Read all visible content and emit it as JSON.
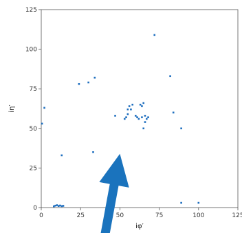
{
  "chart_data": {
    "type": "scatter",
    "xlabel": "iφ′",
    "ylabel": "iη′",
    "xlim": [
      0,
      125
    ],
    "ylim": [
      0,
      125
    ],
    "xticks": [
      "0",
      "25",
      "50",
      "75",
      "100",
      "125"
    ],
    "yticks": [
      "0",
      "25",
      "50",
      "75",
      "100",
      "125"
    ],
    "grid": false,
    "point_color": "#1f6fbf",
    "arrow_color": "#1a73bd",
    "arrow": {
      "from": [
        40,
        -20
      ],
      "to": [
        50,
        34
      ]
    },
    "points": [
      [
        0.5,
        53
      ],
      [
        2,
        63
      ],
      [
        13,
        33
      ],
      [
        24,
        78
      ],
      [
        30,
        79
      ],
      [
        34,
        82
      ],
      [
        33,
        35
      ],
      [
        47,
        58
      ],
      [
        53,
        56
      ],
      [
        54,
        57
      ],
      [
        55,
        59
      ],
      [
        55,
        62
      ],
      [
        56,
        64
      ],
      [
        57,
        62
      ],
      [
        58,
        65
      ],
      [
        60,
        58
      ],
      [
        61,
        57
      ],
      [
        62,
        56
      ],
      [
        63,
        65
      ],
      [
        64,
        64
      ],
      [
        65,
        66
      ],
      [
        64,
        57
      ],
      [
        66,
        58
      ],
      [
        67,
        56
      ],
      [
        66,
        54
      ],
      [
        65,
        50
      ],
      [
        68,
        57
      ],
      [
        72,
        109
      ],
      [
        82,
        83
      ],
      [
        84,
        60
      ],
      [
        89,
        50
      ],
      [
        89,
        3
      ],
      [
        100,
        3
      ],
      [
        8,
        0.8
      ],
      [
        9,
        1.2
      ],
      [
        10,
        1.5
      ],
      [
        11,
        1.0
      ],
      [
        12,
        1.3
      ],
      [
        13,
        0.9
      ],
      [
        14,
        1.1
      ]
    ]
  }
}
